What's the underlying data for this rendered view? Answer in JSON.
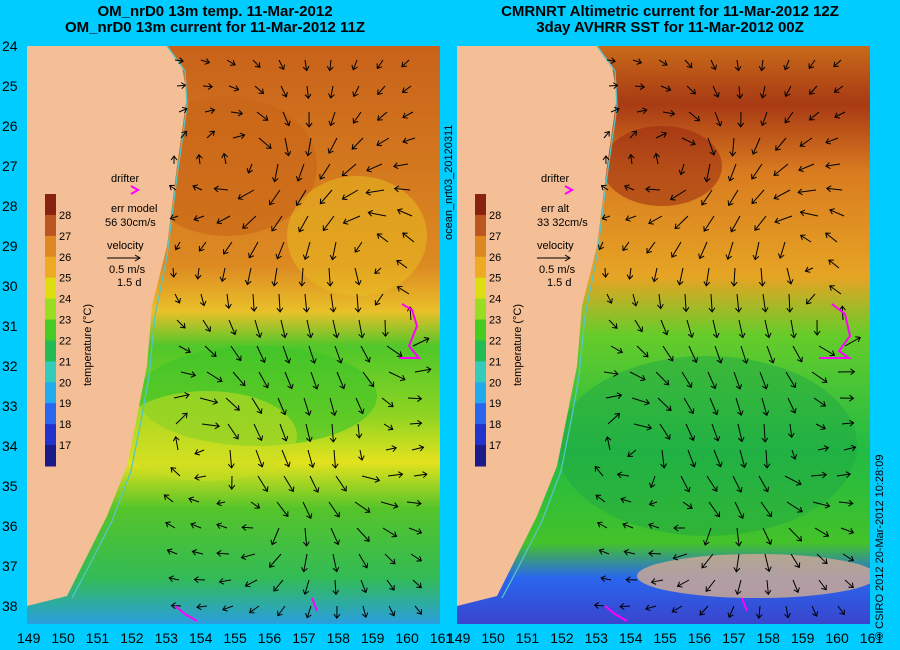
{
  "left_panel": {
    "title_line1": "OM_nrD0 13m temp. 11-Mar-2012",
    "title_line2": "OM_nrD0 13m current for 11-Mar-2012 11Z",
    "drifter_label": "drifter",
    "err_label": "err model",
    "err_value": "56 30cm/s",
    "velocity_label": "velocity",
    "velocity_scale": "0.5 m/s",
    "velocity_time": "1.5 d",
    "colorbar_title": "temperature (°C)"
  },
  "right_panel": {
    "title_line1": "CMRNRT Altimetric current for 11-Mar-2012 12Z",
    "title_line2": "3day AVHRR SST for 11-Mar-2012 00Z",
    "drifter_label": "drifter",
    "err_label": "err alt",
    "err_value": "33 32cm/s",
    "velocity_label": "velocity",
    "velocity_scale": "0.5 m/s",
    "velocity_time": "1.5 d",
    "colorbar_title": "temperature (°C)"
  },
  "colorbar_ticks": [
    "17",
    "18",
    "19",
    "20",
    "21",
    "22",
    "23",
    "24",
    "25",
    "26",
    "27",
    "28"
  ],
  "colorbar_colors": [
    "#1a1a88",
    "#2233cc",
    "#2a66ee",
    "#22aaee",
    "#33ccbb",
    "#22bb55",
    "#44cc22",
    "#99dd22",
    "#dddd11",
    "#eeaa22",
    "#dd8822",
    "#bb5522",
    "#882211"
  ],
  "lat_ticks": [
    "24",
    "25",
    "26",
    "27",
    "28",
    "29",
    "30",
    "31",
    "32",
    "33",
    "34",
    "35",
    "36",
    "37",
    "38"
  ],
  "lon_ticks": [
    "149",
    "150",
    "151",
    "152",
    "153",
    "154",
    "155",
    "156",
    "157",
    "158",
    "159",
    "160",
    "161"
  ],
  "side_text_model": "ocean_nrt03_20120311",
  "side_text_credit": "© CSIRO 2012  20-Mar-2012 10:28:09"
}
